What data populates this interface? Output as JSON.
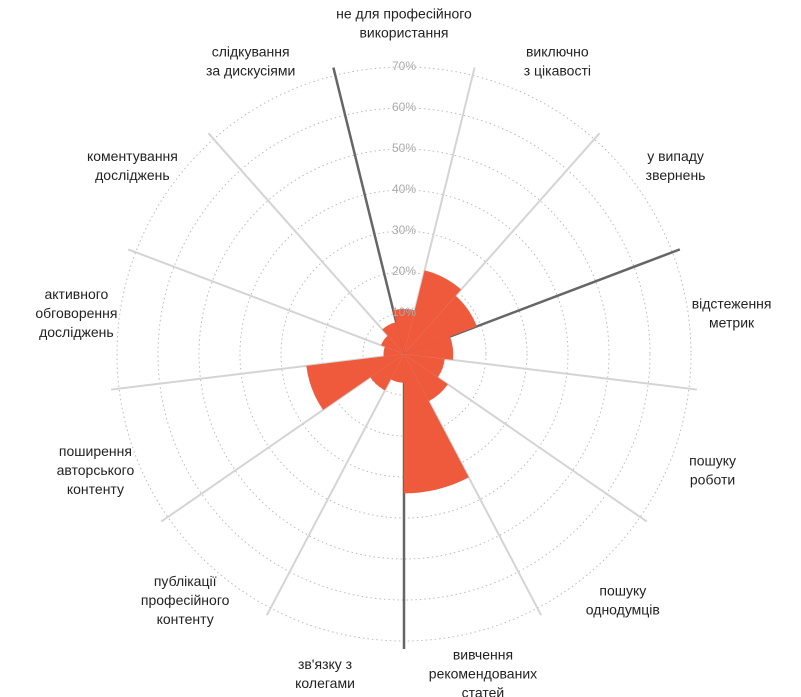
{
  "chart_data": {
    "type": "polar-area",
    "categories": [
      [
        "не для професійного",
        "використання"
      ],
      [
        "виключно",
        "з цікавості"
      ],
      [
        "у випаду",
        "звернень"
      ],
      [
        "відстеження",
        "метрик"
      ],
      [
        "пошуку",
        "роботи"
      ],
      [
        "пошуку",
        "однодумців"
      ],
      [
        "вивчення",
        "рекомендованих",
        "статей"
      ],
      [
        "зв'язку з",
        "колегами"
      ],
      [
        "публікації",
        "професійного",
        "контенту"
      ],
      [
        "поширення",
        "авторського",
        "контенту"
      ],
      [
        "активного",
        "обговорення",
        "досліджень"
      ],
      [
        "коментування",
        "досліджень"
      ],
      [
        "слідкування",
        "за дискусіями"
      ]
    ],
    "values": [
      11,
      21,
      19,
      12,
      10,
      13,
      34,
      7,
      10,
      24,
      5,
      6,
      8
    ],
    "color": "#ef5a3c",
    "ylim": [
      0,
      70
    ],
    "yticks": [
      {
        "value": 10,
        "label": "10%"
      },
      {
        "value": 20,
        "label": "20%"
      },
      {
        "value": 30,
        "label": "30%"
      },
      {
        "value": 40,
        "label": "40%"
      },
      {
        "value": 50,
        "label": "50%"
      },
      {
        "value": 60,
        "label": "60%"
      },
      {
        "value": 70,
        "label": "70%"
      }
    ],
    "grid": true
  }
}
